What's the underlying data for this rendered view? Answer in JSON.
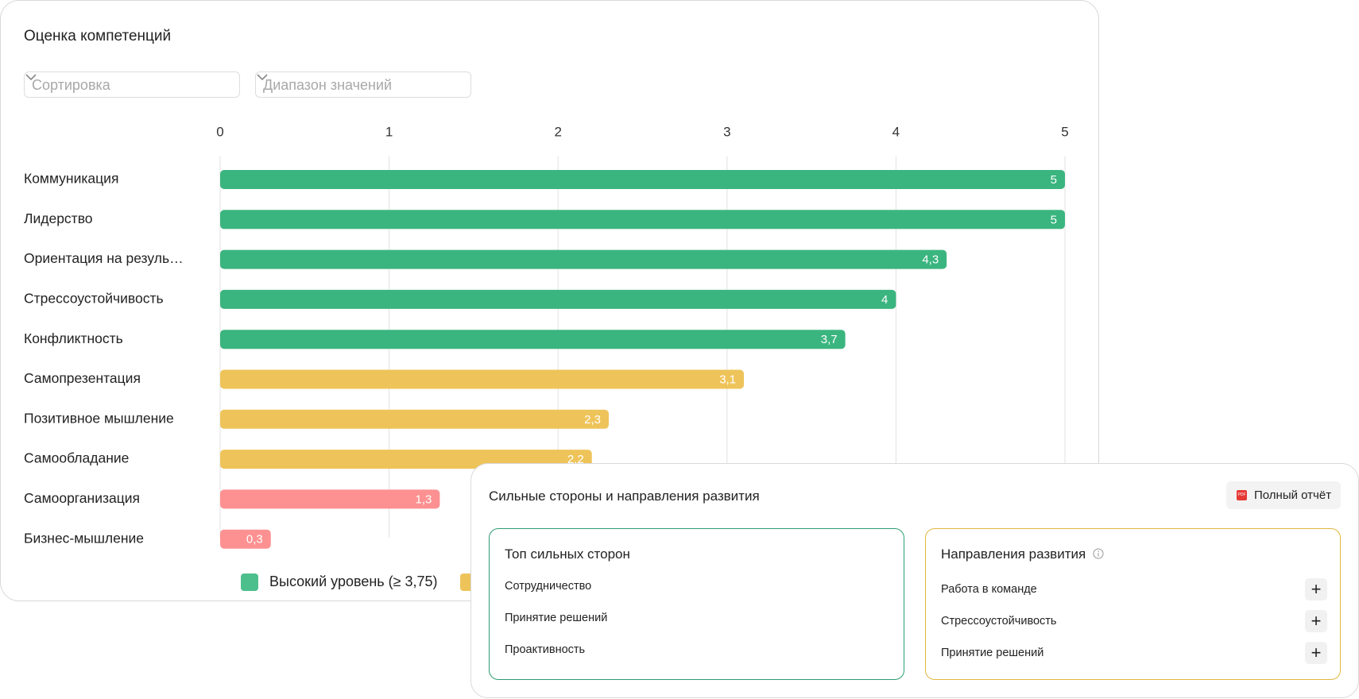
{
  "chart_data": {
    "type": "bar",
    "title": "Оценка компетенций",
    "categories": [
      "Коммуникация",
      "Лидерство",
      "Ориентация на резуль…",
      "Стрессоустойчивость",
      "Конфликтность",
      "Самопрезентация",
      "Позитивное мышление",
      "Самообладание",
      "Самоорганизация",
      "Бизнес-мышление"
    ],
    "values": [
      5,
      5,
      4.3,
      4,
      3.7,
      3.1,
      2.3,
      2.2,
      1.3,
      0.3
    ],
    "value_labels": [
      "5",
      "5",
      "4,3",
      "4",
      "3,7",
      "3,1",
      "2,3",
      "2,2",
      "1,3",
      "0,3"
    ],
    "colors": [
      "#3bb57f",
      "#3bb57f",
      "#3bb57f",
      "#3bb57f",
      "#3bb57f",
      "#eec45a",
      "#eec45a",
      "#eec45a",
      "#fd9191",
      "#fd9191"
    ],
    "xlim": [
      0,
      5
    ],
    "xticks": [
      0,
      1,
      2,
      3,
      4,
      5
    ],
    "grid": true,
    "legend": [
      {
        "label": "Высокий уровень (≥ 3,75)",
        "color": "#4dbf8d"
      }
    ]
  },
  "filters": [
    "Сортировка",
    "Диапазон значений"
  ],
  "panel": {
    "title": "Сильные стороны и направления развития",
    "button": "Полный отчёт",
    "icon": "PDF",
    "strengths": {
      "title": "Топ сильных сторон",
      "items": [
        "Сотрудничество",
        "Принятие решений",
        "Проактивность"
      ]
    },
    "development": {
      "title": "Направления развития",
      "items": [
        "Работа в команде",
        "Стрессоустойчивость",
        "Принятие решений"
      ]
    }
  }
}
